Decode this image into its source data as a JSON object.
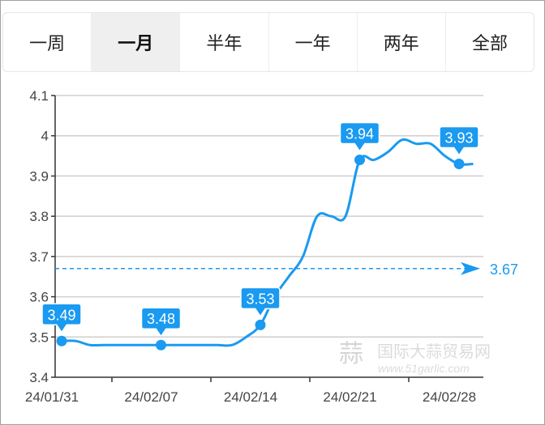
{
  "tabs": [
    {
      "label": "一周",
      "active": false
    },
    {
      "label": "一月",
      "active": true
    },
    {
      "label": "半年",
      "active": false
    },
    {
      "label": "一年",
      "active": false
    },
    {
      "label": "两年",
      "active": false
    },
    {
      "label": "全部",
      "active": false
    }
  ],
  "watermark": {
    "name": "国际大蒜贸易网",
    "url": "www.51garlic.com"
  },
  "chart_data": {
    "type": "line",
    "ylim": [
      3.4,
      4.1
    ],
    "yticks": [
      "3.4",
      "3.5",
      "3.6",
      "3.7",
      "3.8",
      "3.9",
      "4",
      "4.1"
    ],
    "xtick_labels": [
      "24/01/31",
      "24/02/07",
      "24/02/14",
      "24/02/21",
      "24/02/28"
    ],
    "grid": "horizontal",
    "color": "#1a9af0",
    "x": [
      "01/31",
      "02/01",
      "02/02",
      "02/03",
      "02/04",
      "02/05",
      "02/06",
      "02/07",
      "02/08",
      "02/09",
      "02/10",
      "02/11",
      "02/12",
      "02/13",
      "02/14",
      "02/15",
      "02/16",
      "02/17",
      "02/18",
      "02/19",
      "02/20",
      "02/21",
      "02/22",
      "02/23",
      "02/24",
      "02/25",
      "02/26",
      "02/27",
      "02/28",
      "02/29"
    ],
    "values": [
      3.49,
      3.49,
      3.48,
      3.48,
      3.48,
      3.48,
      3.48,
      3.48,
      3.48,
      3.48,
      3.48,
      3.48,
      3.48,
      3.5,
      3.53,
      3.6,
      3.65,
      3.7,
      3.8,
      3.8,
      3.8,
      3.94,
      3.94,
      3.96,
      3.99,
      3.98,
      3.98,
      3.95,
      3.93,
      3.93
    ],
    "labeled_points": [
      {
        "index": 0,
        "label": "3.49"
      },
      {
        "index": 7,
        "label": "3.48"
      },
      {
        "index": 14,
        "label": "3.53"
      },
      {
        "index": 21,
        "label": "3.94"
      },
      {
        "index": 28,
        "label": "3.93"
      }
    ],
    "average": {
      "value": 3.67,
      "label": "3.67"
    }
  }
}
